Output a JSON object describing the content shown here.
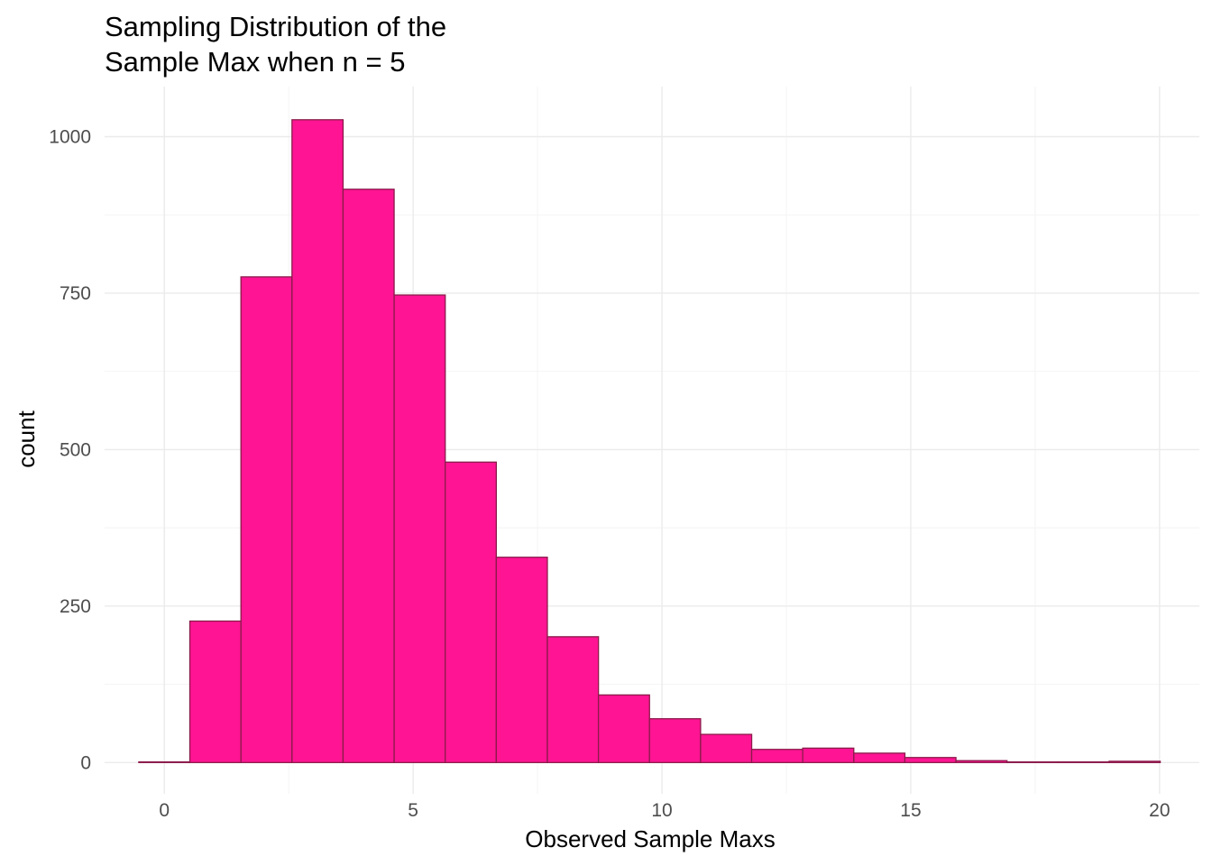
{
  "chart_data": {
    "type": "bar",
    "title_lines": [
      "Sampling Distribution of the",
      "Sample Max when n = 5"
    ],
    "xlabel": "Observed Sample Maxs",
    "ylabel": "count",
    "xlim": [
      -1.2,
      20.8
    ],
    "ylim": [
      -50,
      1080
    ],
    "x_ticks": [
      0,
      5,
      10,
      15,
      20
    ],
    "x_tick_labels": [
      "0",
      "5",
      "10",
      "15",
      "20"
    ],
    "x_minor_ticks": [
      2.5,
      7.5,
      12.5,
      17.5
    ],
    "y_ticks": [
      0,
      250,
      500,
      750,
      1000
    ],
    "y_tick_labels": [
      "0",
      "250",
      "500",
      "750",
      "1000"
    ],
    "y_minor_ticks": [
      125,
      375,
      625,
      875
    ],
    "bin_width": 1.0265,
    "bins": [
      {
        "x": 0.0,
        "count": 1
      },
      {
        "x": 1.026,
        "count": 226
      },
      {
        "x": 2.053,
        "count": 776
      },
      {
        "x": 3.079,
        "count": 1027
      },
      {
        "x": 4.105,
        "count": 916
      },
      {
        "x": 5.132,
        "count": 747
      },
      {
        "x": 6.158,
        "count": 480
      },
      {
        "x": 7.184,
        "count": 328
      },
      {
        "x": 8.211,
        "count": 201
      },
      {
        "x": 9.237,
        "count": 108
      },
      {
        "x": 10.263,
        "count": 70
      },
      {
        "x": 11.29,
        "count": 45
      },
      {
        "x": 12.316,
        "count": 21
      },
      {
        "x": 13.342,
        "count": 23
      },
      {
        "x": 14.369,
        "count": 15
      },
      {
        "x": 15.395,
        "count": 8
      },
      {
        "x": 16.421,
        "count": 3
      },
      {
        "x": 17.448,
        "count": 1
      },
      {
        "x": 18.474,
        "count": 1
      },
      {
        "x": 19.5,
        "count": 2
      }
    ],
    "bar_fill": "#ff1493",
    "bar_stroke": "#8b1a4a",
    "grid": true,
    "legend": "none"
  }
}
